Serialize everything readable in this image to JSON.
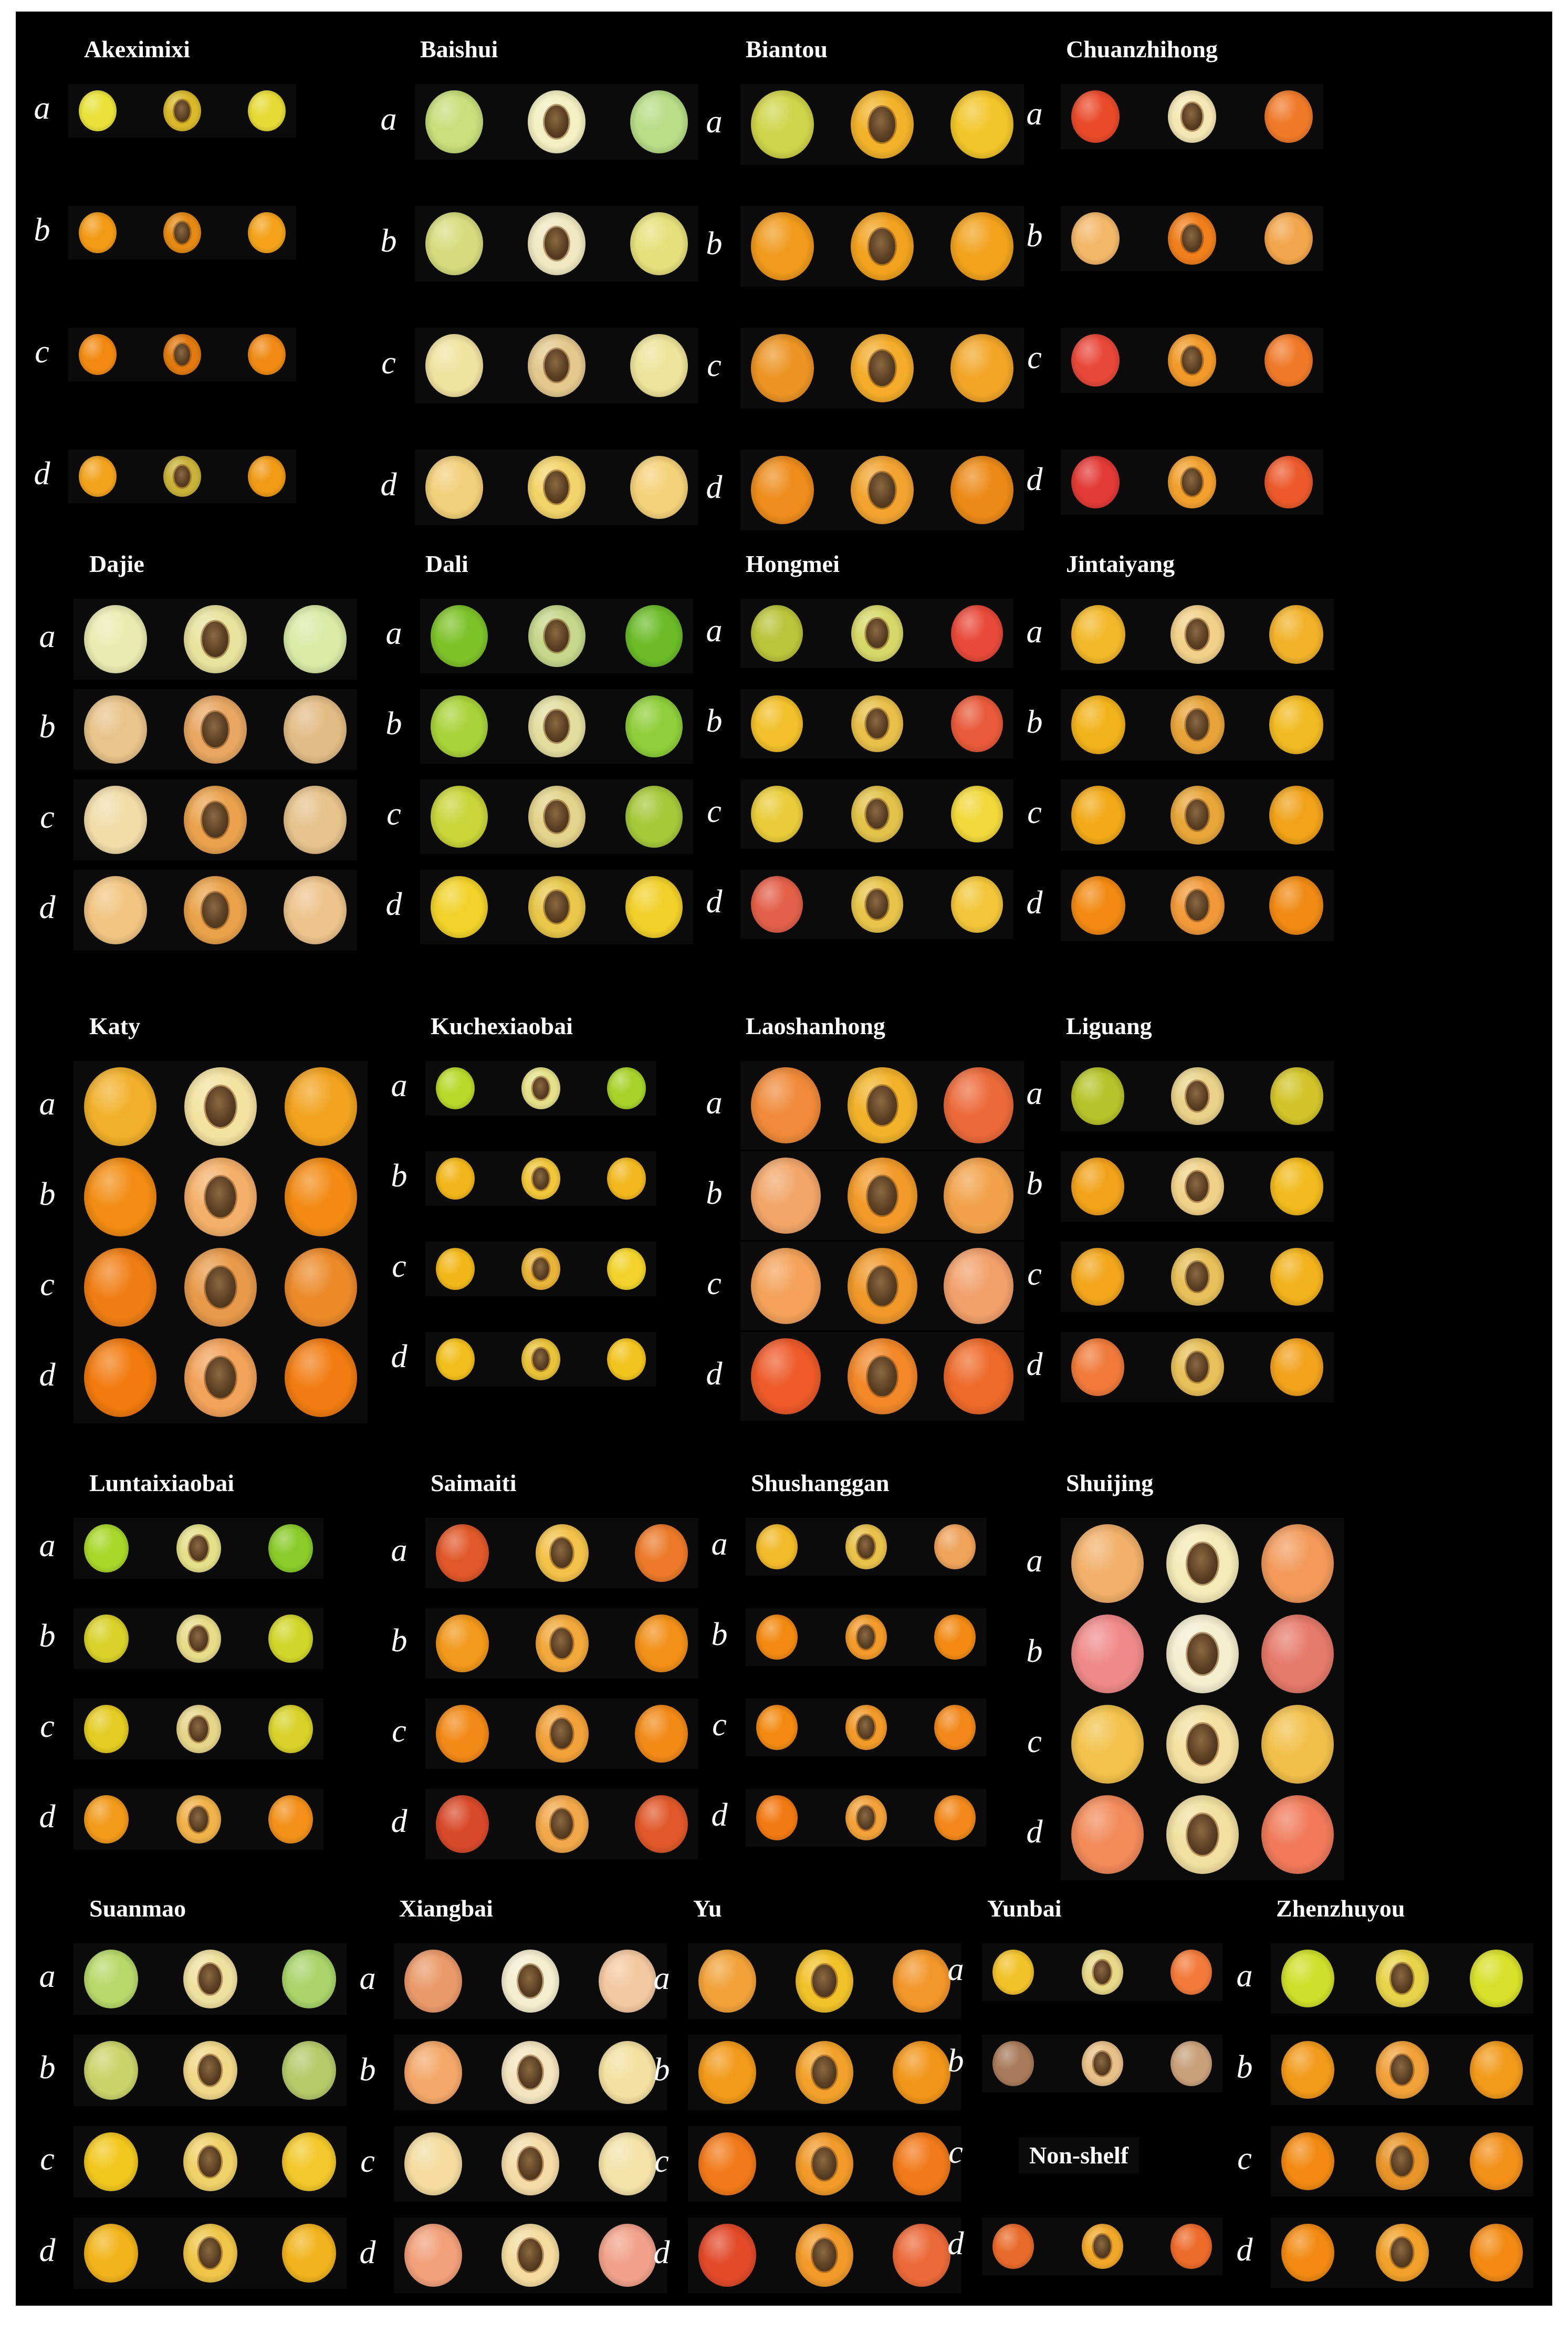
{
  "figure": {
    "row_labels": [
      "a",
      "b",
      "c",
      "d"
    ],
    "colors": {
      "background": "#000000",
      "text": "#ffffff"
    },
    "cultivars": [
      {
        "name": "Akeximixi",
        "rows": [
          {
            "colors": [
              "#e9e23a",
              "#d9b92a",
              "#e6da36"
            ]
          },
          {
            "colors": [
              "#f29a16",
              "#e58a14",
              "#f3a21a"
            ]
          },
          {
            "colors": [
              "#f28a12",
              "#e27a10",
              "#f08a14"
            ]
          },
          {
            "colors": [
              "#f2a31e",
              "#c9b23a",
              "#f09a16"
            ]
          }
        ]
      },
      {
        "name": "Baishui",
        "rows": [
          {
            "colors": [
              "#c8de7a",
              "#f2f0c0",
              "#b7dd86"
            ]
          },
          {
            "colors": [
              "#d6dc7e",
              "#efe8c2",
              "#e6e07c"
            ]
          },
          {
            "colors": [
              "#f1e2a0",
              "#e3c98e",
              "#eee39a"
            ]
          },
          {
            "colors": [
              "#f2cf7a",
              "#f3d46a",
              "#f5d27a"
            ]
          }
        ]
      },
      {
        "name": "Biantou",
        "rows": [
          {
            "colors": [
              "#cfd54a",
              "#f2b22a",
              "#f2c62a"
            ]
          },
          {
            "colors": [
              "#f09a1c",
              "#f2a21e",
              "#f2a21c"
            ]
          },
          {
            "colors": [
              "#ec9424",
              "#f4ac2a",
              "#f2a628"
            ]
          },
          {
            "colors": [
              "#ee8c1c",
              "#f2a430",
              "#ec8a18"
            ]
          }
        ]
      },
      {
        "name": "Chuanzhihong",
        "rows": [
          {
            "colors": [
              "#e94a2a",
              "#f4e7b4",
              "#ef7a2a"
            ]
          },
          {
            "colors": [
              "#f3b76a",
              "#f07f1c",
              "#f2a54a"
            ]
          },
          {
            "colors": [
              "#e8483a",
              "#f29a2a",
              "#f07a2a"
            ]
          },
          {
            "colors": [
              "#e23a36",
              "#f2a02e",
              "#ec5a2c"
            ]
          }
        ]
      },
      {
        "name": "Dajie",
        "rows": [
          {
            "colors": [
              "#e9ecb0",
              "#e7e29c",
              "#d9eba6"
            ]
          },
          {
            "colors": [
              "#e8c38a",
              "#e7a662",
              "#e2bc86"
            ]
          },
          {
            "colors": [
              "#f2dca8",
              "#eaa24e",
              "#e6c28c"
            ]
          },
          {
            "colors": [
              "#f2c582",
              "#eaa24a",
              "#eec38c"
            ]
          }
        ]
      },
      {
        "name": "Dali",
        "rows": [
          {
            "colors": [
              "#7ec22a",
              "#c4d78a",
              "#6cbc2a"
            ]
          },
          {
            "colors": [
              "#a9d33a",
              "#e3dea0",
              "#8fce3a"
            ]
          },
          {
            "colors": [
              "#c9d53a",
              "#e4d38a",
              "#a7c83a"
            ]
          },
          {
            "colors": [
              "#f2d22a",
              "#e8c74a",
              "#f2d02a"
            ]
          }
        ]
      },
      {
        "name": "Hongmei",
        "rows": [
          {
            "colors": [
              "#b9c43a",
              "#d7d86a",
              "#e84a3a"
            ]
          },
          {
            "colors": [
              "#f2c02a",
              "#e8bf4a",
              "#e85a3a"
            ]
          },
          {
            "colors": [
              "#eacc3a",
              "#e3c24a",
              "#f2d83a"
            ]
          },
          {
            "colors": [
              "#e2604a",
              "#e8c54a",
              "#f2c63a"
            ]
          }
        ]
      },
      {
        "name": "Jintaiyang",
        "rows": [
          {
            "colors": [
              "#f3b82a",
              "#f2d28a",
              "#f2b22a"
            ]
          },
          {
            "colors": [
              "#f2b21a",
              "#e8a43a",
              "#f2ba22"
            ]
          },
          {
            "colors": [
              "#f2aa18",
              "#e8a63a",
              "#f0a218"
            ]
          },
          {
            "colors": [
              "#f28a12",
              "#f29a3a",
              "#f08a14"
            ]
          }
        ]
      },
      {
        "name": "Katy",
        "rows": [
          {
            "colors": [
              "#f2b02a",
              "#f4e2a0",
              "#f2a21e"
            ]
          },
          {
            "colors": [
              "#f28c12",
              "#f4b06a",
              "#f28a14"
            ]
          },
          {
            "colors": [
              "#f07e14",
              "#e89a4a",
              "#ec8a2a"
            ]
          },
          {
            "colors": [
              "#f27a0e",
              "#f2a25a",
              "#f27c12"
            ]
          }
        ]
      },
      {
        "name": "Kuchexiaobai",
        "rows": [
          {
            "colors": [
              "#b9d82a",
              "#e4e08a",
              "#a7d22a"
            ]
          },
          {
            "colors": [
              "#f2b61a",
              "#f0c63a",
              "#f2b81e"
            ]
          },
          {
            "colors": [
              "#f2b81a",
              "#e8b43a",
              "#f2d22a"
            ]
          },
          {
            "colors": [
              "#f2be1c",
              "#e8c23a",
              "#f2c41e"
            ]
          }
        ]
      },
      {
        "name": "Laoshanhong",
        "rows": [
          {
            "colors": [
              "#f08a3a",
              "#f2b22a",
              "#ec6a3a"
            ]
          },
          {
            "colors": [
              "#f2a66a",
              "#f29a2a",
              "#f2a24a"
            ]
          },
          {
            "colors": [
              "#f4a25a",
              "#f0982a",
              "#f2a06a"
            ]
          },
          {
            "colors": [
              "#ee5a2a",
              "#f2882a",
              "#ee6a2a"
            ]
          }
        ]
      },
      {
        "name": "Liguang",
        "rows": [
          {
            "colors": [
              "#b5c42a",
              "#e8d28a",
              "#d2c42a"
            ]
          },
          {
            "colors": [
              "#f2a21a",
              "#f0d28a",
              "#f2ba1c"
            ]
          },
          {
            "colors": [
              "#f2a61c",
              "#e8c05a",
              "#f2b21c"
            ]
          },
          {
            "colors": [
              "#f07a3a",
              "#e8c05a",
              "#f2a21c"
            ]
          }
        ]
      },
      {
        "name": "Luntaixiaobai",
        "rows": [
          {
            "colors": [
              "#a8d82a",
              "#e4e08a",
              "#8acb2a"
            ]
          },
          {
            "colors": [
              "#d8d22a",
              "#e8dc8a",
              "#d2d62a"
            ]
          },
          {
            "colors": [
              "#e4cc22",
              "#e6d68a",
              "#d8d22a"
            ]
          },
          {
            "colors": [
              "#f29a1a",
              "#f0b24a",
              "#f2901a"
            ]
          }
        ]
      },
      {
        "name": "Saimaiti",
        "rows": [
          {
            "colors": [
              "#e0582a",
              "#f2c24a",
              "#ec7a2a"
            ]
          },
          {
            "colors": [
              "#f2981a",
              "#f2a83a",
              "#f29018"
            ]
          },
          {
            "colors": [
              "#f28a18",
              "#f2a23a",
              "#f28a18"
            ]
          },
          {
            "colors": [
              "#d84a2a",
              "#f2a84a",
              "#e0582a"
            ]
          }
        ]
      },
      {
        "name": "Shushanggan",
        "rows": [
          {
            "colors": [
              "#f2ba2a",
              "#e8c24a",
              "#eea25a"
            ]
          },
          {
            "colors": [
              "#f28a12",
              "#f29a2a",
              "#f28a14"
            ]
          },
          {
            "colors": [
              "#f28a12",
              "#f29a2a",
              "#f2881a"
            ]
          },
          {
            "colors": [
              "#f27a12",
              "#f2a23a",
              "#f2881a"
            ]
          }
        ]
      },
      {
        "name": "Shuijing",
        "rows": [
          {
            "colors": [
              "#f2b06a",
              "#f4eab8",
              "#f29a5a"
            ]
          },
          {
            "colors": [
              "#f08a8a",
              "#f4eed0",
              "#e67a6a"
            ]
          },
          {
            "colors": [
              "#f2c24a",
              "#f4e0a0",
              "#f2c04a"
            ]
          },
          {
            "colors": [
              "#f28a5a",
              "#f2e0a0",
              "#f07a5a"
            ]
          }
        ]
      },
      {
        "name": "Suanmao",
        "rows": [
          {
            "colors": [
              "#b8d86a",
              "#f0e0a0",
              "#a8d46a"
            ]
          },
          {
            "colors": [
              "#cad46a",
              "#f0d88a",
              "#b6ca6a"
            ]
          },
          {
            "colors": [
              "#f2c81e",
              "#f0d26a",
              "#f2c82a"
            ]
          },
          {
            "colors": [
              "#f2b41a",
              "#f0c64a",
              "#f2b41e"
            ]
          }
        ]
      },
      {
        "name": "Xiangbai",
        "rows": [
          {
            "colors": [
              "#ea9a6a",
              "#f4eed0",
              "#f4c8a0"
            ]
          },
          {
            "colors": [
              "#f4a86a",
              "#f4e4c0",
              "#f4e0a0"
            ]
          },
          {
            "colors": [
              "#f4dca0",
              "#f4dca8",
              "#f4e2a8"
            ]
          },
          {
            "colors": [
              "#f2a07a",
              "#f4dca0",
              "#f2a28a"
            ]
          }
        ]
      },
      {
        "name": "Yu",
        "rows": [
          {
            "colors": [
              "#f2a23a",
              "#f2c22a",
              "#f2962a"
            ]
          },
          {
            "colors": [
              "#f29a1a",
              "#f2a22a",
              "#f2961a"
            ]
          },
          {
            "colors": [
              "#f27a1a",
              "#f29a2a",
              "#f27a1a"
            ]
          },
          {
            "colors": [
              "#e24a2a",
              "#f29a2a",
              "#ec6a3a"
            ]
          }
        ]
      },
      {
        "name": "Yunbai",
        "rows": [
          {
            "colors": [
              "#f2c22a",
              "#e8d88a",
              "#f27a3a"
            ]
          },
          {
            "colors": [
              "#a87a5a",
              "#e8c08a",
              "#c8a07a"
            ]
          }
        ],
        "note": "Non-shelf",
        "rows_after": [
          {
            "colors": [
              "#e86a2a",
              "#f2a82a",
              "#ec6a2a"
            ]
          }
        ]
      },
      {
        "name": "Zhenzhuyou",
        "rows": [
          {
            "colors": [
              "#cfe02a",
              "#e8d44a",
              "#d8e02a"
            ]
          },
          {
            "colors": [
              "#f29a1a",
              "#f2a23a",
              "#f29a1a"
            ]
          },
          {
            "colors": [
              "#f28a12",
              "#e8962a",
              "#f2901a"
            ]
          },
          {
            "colors": [
              "#f28a12",
              "#f2a22a",
              "#f28a14"
            ]
          }
        ]
      }
    ]
  }
}
